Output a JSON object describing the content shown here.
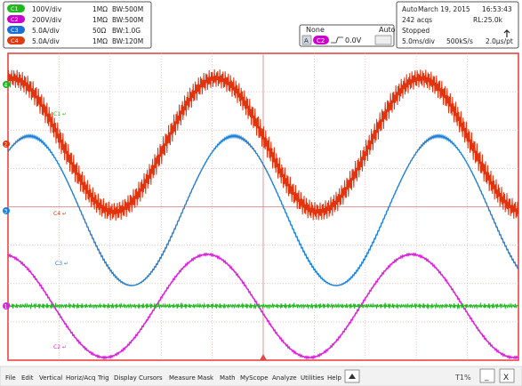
{
  "menu": {
    "items": [
      "File",
      "Edit",
      "Vertical",
      "Horiz/Acq",
      "Trig",
      "Display",
      "Cursors",
      "Measure",
      "Mask",
      "Math",
      "MyScope",
      "Analyze",
      "Utilities",
      "Help"
    ],
    "corner_label": "T1%",
    "minimize": "_",
    "close": "X"
  },
  "channels": [
    {
      "id": "C1",
      "scale": "100V/div",
      "coupling": "1MΩ",
      "bw": "BW:500M",
      "color": "#1fb81f"
    },
    {
      "id": "C2",
      "scale": "200V/div",
      "coupling": "1MΩ",
      "bw": "BW:500M",
      "color": "#cc00cc"
    },
    {
      "id": "C3",
      "scale": "5.0A/div",
      "coupling": "50Ω",
      "bw": "BW:1.0G",
      "color": "#1a6fd6"
    },
    {
      "id": "C4",
      "scale": "5.0A/div",
      "coupling": "1MΩ",
      "bw": "BW:120M",
      "color": "#e03a10"
    }
  ],
  "trigger": {
    "source": "C2",
    "level": "0.0V",
    "mode_top": "None",
    "mode_label": "Auto",
    "marker": "A"
  },
  "acquisition": {
    "timebase": "2.0μs/pt",
    "time_div": "5.0ms/div",
    "sample_rate": "500kS/s",
    "status": "Stopped",
    "acqs": "242 acqs",
    "mode": "Auto",
    "date": "March 19, 2015",
    "record": "RL:25.0k",
    "time": "16:53:43"
  },
  "waveform_labels": {
    "ch1": "C1 ↵",
    "ch3": "C3 ↵",
    "ch4": "C4 ↵",
    "ch2": "C2 ↵"
  },
  "colors": {
    "grid_border": "#e64646",
    "grid_line": "#e8b0b0",
    "ch1": "#1fb81f",
    "ch2": "#dd22dd",
    "ch3": "#1e7fd8",
    "ch4": "#e0330e"
  },
  "chart_data": {
    "type": "line",
    "title": "",
    "xlabel": "",
    "ylabel": "",
    "x_divisions": 10,
    "y_divisions": 8,
    "series": [
      {
        "name": "C4",
        "description": "approximately sinusoidal, about 2 cycles visible, with dense high-frequency ripple"
      },
      {
        "name": "C3",
        "description": "sinusoidal, about 2 cycles visible"
      },
      {
        "name": "C2",
        "description": "sinusoidal, about 2 cycles visible, roughly out of phase with C3"
      },
      {
        "name": "C1",
        "description": "flat trace with small noise"
      }
    ]
  }
}
